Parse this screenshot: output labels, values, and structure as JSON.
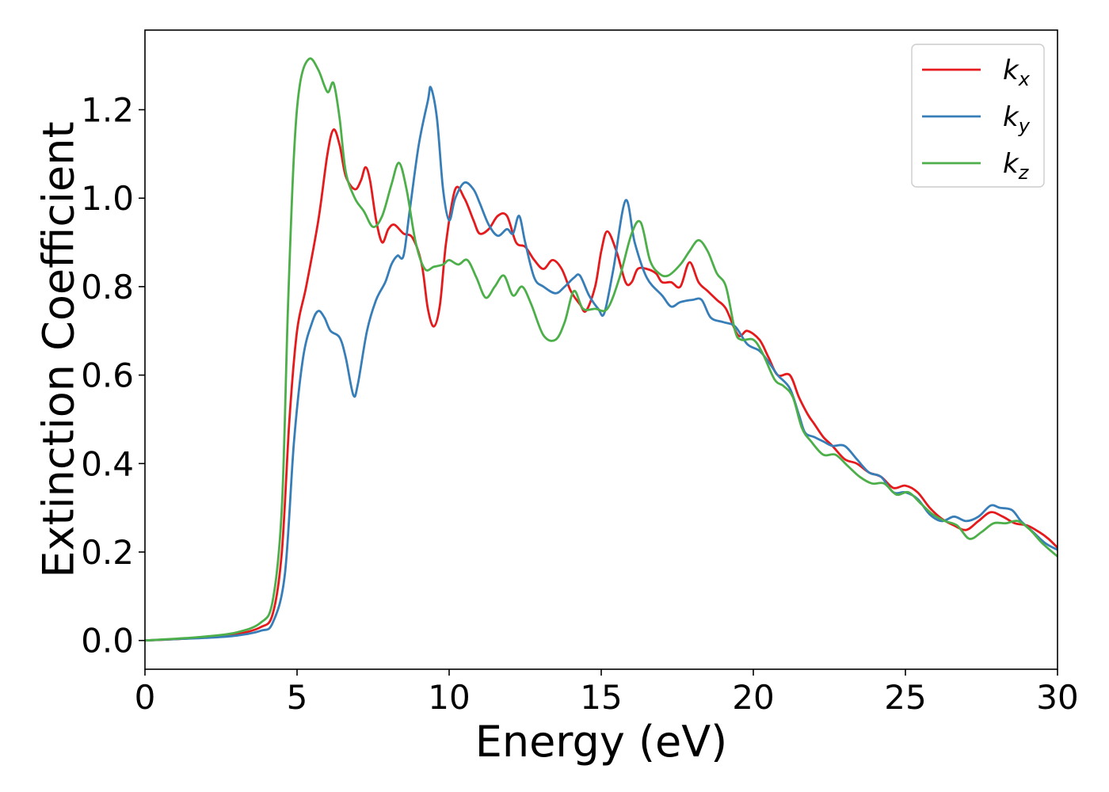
{
  "chart_data": {
    "type": "line",
    "title": "",
    "xlabel": "Energy (eV)",
    "ylabel": "Extinction Coefficient",
    "xlim": [
      0,
      30
    ],
    "ylim": [
      -0.065,
      1.38
    ],
    "xticks": [
      0,
      5,
      10,
      15,
      20,
      25,
      30
    ],
    "yticks": [
      0.0,
      0.2,
      0.4,
      0.6,
      0.8,
      1.0,
      1.2
    ],
    "xtick_labels": [
      "0",
      "5",
      "10",
      "15",
      "20",
      "25",
      "30"
    ],
    "ytick_labels": [
      "0.0",
      "0.2",
      "0.4",
      "0.6",
      "0.8",
      "1.0",
      "1.2"
    ],
    "grid": false,
    "legend_position": "top-right",
    "series": [
      {
        "name": "k_x",
        "name_base": "k",
        "name_sub": "x",
        "color": "#e41a1c",
        "points": [
          [
            0,
            0
          ],
          [
            1,
            0.003
          ],
          [
            2,
            0.007
          ],
          [
            3,
            0.014
          ],
          [
            3.8,
            0.03
          ],
          [
            4.2,
            0.06
          ],
          [
            4.5,
            0.2
          ],
          [
            4.75,
            0.5
          ],
          [
            5,
            0.7
          ],
          [
            5.3,
            0.8
          ],
          [
            5.7,
            0.95
          ],
          [
            6,
            1.1
          ],
          [
            6.2,
            1.155
          ],
          [
            6.4,
            1.12
          ],
          [
            6.6,
            1.05
          ],
          [
            6.9,
            1.02
          ],
          [
            7.1,
            1.04
          ],
          [
            7.25,
            1.07
          ],
          [
            7.4,
            1.04
          ],
          [
            7.6,
            0.95
          ],
          [
            7.8,
            0.9
          ],
          [
            8.0,
            0.93
          ],
          [
            8.2,
            0.94
          ],
          [
            8.5,
            0.92
          ],
          [
            8.8,
            0.91
          ],
          [
            9.1,
            0.85
          ],
          [
            9.3,
            0.75
          ],
          [
            9.5,
            0.71
          ],
          [
            9.7,
            0.76
          ],
          [
            9.9,
            0.9
          ],
          [
            10.2,
            1.02
          ],
          [
            10.5,
            1.0
          ],
          [
            10.8,
            0.95
          ],
          [
            11.0,
            0.92
          ],
          [
            11.3,
            0.93
          ],
          [
            11.6,
            0.96
          ],
          [
            11.9,
            0.96
          ],
          [
            12.2,
            0.9
          ],
          [
            12.5,
            0.89
          ],
          [
            12.8,
            0.86
          ],
          [
            13.1,
            0.84
          ],
          [
            13.4,
            0.86
          ],
          [
            13.7,
            0.84
          ],
          [
            14.0,
            0.79
          ],
          [
            14.3,
            0.76
          ],
          [
            14.5,
            0.745
          ],
          [
            14.8,
            0.8
          ],
          [
            15.0,
            0.88
          ],
          [
            15.2,
            0.925
          ],
          [
            15.5,
            0.88
          ],
          [
            15.8,
            0.81
          ],
          [
            16.0,
            0.81
          ],
          [
            16.2,
            0.84
          ],
          [
            16.5,
            0.84
          ],
          [
            16.8,
            0.83
          ],
          [
            17.0,
            0.81
          ],
          [
            17.3,
            0.81
          ],
          [
            17.6,
            0.8
          ],
          [
            17.9,
            0.855
          ],
          [
            18.2,
            0.81
          ],
          [
            18.5,
            0.79
          ],
          [
            18.8,
            0.77
          ],
          [
            19.1,
            0.75
          ],
          [
            19.5,
            0.69
          ],
          [
            19.8,
            0.7
          ],
          [
            20.2,
            0.68
          ],
          [
            20.5,
            0.64
          ],
          [
            20.8,
            0.6
          ],
          [
            21.2,
            0.6
          ],
          [
            21.5,
            0.55
          ],
          [
            21.8,
            0.51
          ],
          [
            22.0,
            0.49
          ],
          [
            22.3,
            0.46
          ],
          [
            22.6,
            0.44
          ],
          [
            23.0,
            0.41
          ],
          [
            23.4,
            0.4
          ],
          [
            23.8,
            0.38
          ],
          [
            24.2,
            0.37
          ],
          [
            24.6,
            0.345
          ],
          [
            25.0,
            0.35
          ],
          [
            25.4,
            0.335
          ],
          [
            25.8,
            0.3
          ],
          [
            26.2,
            0.275
          ],
          [
            26.6,
            0.26
          ],
          [
            27.0,
            0.25
          ],
          [
            27.4,
            0.27
          ],
          [
            27.8,
            0.29
          ],
          [
            28.2,
            0.28
          ],
          [
            28.6,
            0.265
          ],
          [
            29.0,
            0.26
          ],
          [
            29.4,
            0.245
          ],
          [
            29.7,
            0.23
          ],
          [
            30,
            0.21
          ]
        ]
      },
      {
        "name": "k_y",
        "name_base": "k",
        "name_sub": "y",
        "color": "#377eb8",
        "points": [
          [
            0,
            0
          ],
          [
            1,
            0.003
          ],
          [
            2,
            0.006
          ],
          [
            3,
            0.011
          ],
          [
            3.8,
            0.022
          ],
          [
            4.2,
            0.04
          ],
          [
            4.6,
            0.15
          ],
          [
            4.9,
            0.45
          ],
          [
            5.2,
            0.64
          ],
          [
            5.5,
            0.72
          ],
          [
            5.7,
            0.745
          ],
          [
            5.9,
            0.73
          ],
          [
            6.1,
            0.7
          ],
          [
            6.4,
            0.685
          ],
          [
            6.6,
            0.64
          ],
          [
            6.85,
            0.555
          ],
          [
            7.0,
            0.58
          ],
          [
            7.3,
            0.7
          ],
          [
            7.6,
            0.77
          ],
          [
            7.9,
            0.81
          ],
          [
            8.1,
            0.85
          ],
          [
            8.3,
            0.87
          ],
          [
            8.5,
            0.87
          ],
          [
            8.7,
            0.97
          ],
          [
            9.0,
            1.12
          ],
          [
            9.3,
            1.22
          ],
          [
            9.4,
            1.25
          ],
          [
            9.6,
            1.18
          ],
          [
            9.8,
            1.02
          ],
          [
            10.0,
            0.95
          ],
          [
            10.2,
            1.0
          ],
          [
            10.5,
            1.035
          ],
          [
            10.8,
            1.02
          ],
          [
            11.0,
            0.99
          ],
          [
            11.3,
            0.94
          ],
          [
            11.6,
            0.915
          ],
          [
            11.9,
            0.93
          ],
          [
            12.1,
            0.92
          ],
          [
            12.3,
            0.96
          ],
          [
            12.5,
            0.9
          ],
          [
            12.8,
            0.82
          ],
          [
            13.1,
            0.8
          ],
          [
            13.5,
            0.785
          ],
          [
            13.8,
            0.8
          ],
          [
            14.1,
            0.82
          ],
          [
            14.3,
            0.825
          ],
          [
            14.6,
            0.78
          ],
          [
            14.9,
            0.75
          ],
          [
            15.1,
            0.74
          ],
          [
            15.4,
            0.84
          ],
          [
            15.8,
            0.995
          ],
          [
            16.1,
            0.9
          ],
          [
            16.5,
            0.82
          ],
          [
            17.0,
            0.78
          ],
          [
            17.3,
            0.755
          ],
          [
            17.6,
            0.765
          ],
          [
            18.0,
            0.77
          ],
          [
            18.3,
            0.77
          ],
          [
            18.6,
            0.73
          ],
          [
            19.0,
            0.72
          ],
          [
            19.4,
            0.71
          ],
          [
            19.8,
            0.67
          ],
          [
            20.2,
            0.655
          ],
          [
            20.5,
            0.63
          ],
          [
            20.8,
            0.6
          ],
          [
            21.2,
            0.57
          ],
          [
            21.5,
            0.51
          ],
          [
            21.7,
            0.47
          ],
          [
            22.0,
            0.46
          ],
          [
            22.3,
            0.45
          ],
          [
            22.6,
            0.44
          ],
          [
            23.0,
            0.44
          ],
          [
            23.4,
            0.41
          ],
          [
            23.8,
            0.38
          ],
          [
            24.2,
            0.37
          ],
          [
            24.6,
            0.335
          ],
          [
            25.0,
            0.335
          ],
          [
            25.4,
            0.32
          ],
          [
            25.8,
            0.285
          ],
          [
            26.2,
            0.27
          ],
          [
            26.6,
            0.28
          ],
          [
            27.0,
            0.27
          ],
          [
            27.4,
            0.28
          ],
          [
            27.8,
            0.305
          ],
          [
            28.1,
            0.3
          ],
          [
            28.5,
            0.295
          ],
          [
            28.8,
            0.27
          ],
          [
            29.2,
            0.245
          ],
          [
            29.6,
            0.22
          ],
          [
            30,
            0.205
          ]
        ]
      },
      {
        "name": "k_z",
        "name_base": "k",
        "name_sub": "z",
        "color": "#4daf4a",
        "points": [
          [
            0,
            0
          ],
          [
            1,
            0.004
          ],
          [
            2,
            0.009
          ],
          [
            3,
            0.018
          ],
          [
            3.8,
            0.04
          ],
          [
            4.2,
            0.09
          ],
          [
            4.5,
            0.3
          ],
          [
            4.7,
            0.75
          ],
          [
            4.9,
            1.1
          ],
          [
            5.1,
            1.26
          ],
          [
            5.4,
            1.315
          ],
          [
            5.7,
            1.29
          ],
          [
            6.0,
            1.24
          ],
          [
            6.2,
            1.26
          ],
          [
            6.4,
            1.18
          ],
          [
            6.6,
            1.06
          ],
          [
            6.9,
            1.0
          ],
          [
            7.2,
            0.97
          ],
          [
            7.5,
            0.935
          ],
          [
            7.8,
            0.96
          ],
          [
            8.1,
            1.03
          ],
          [
            8.35,
            1.08
          ],
          [
            8.6,
            1.02
          ],
          [
            8.9,
            0.9
          ],
          [
            9.2,
            0.84
          ],
          [
            9.5,
            0.845
          ],
          [
            9.8,
            0.85
          ],
          [
            10.0,
            0.86
          ],
          [
            10.3,
            0.85
          ],
          [
            10.6,
            0.86
          ],
          [
            10.9,
            0.82
          ],
          [
            11.2,
            0.775
          ],
          [
            11.5,
            0.8
          ],
          [
            11.8,
            0.825
          ],
          [
            12.1,
            0.78
          ],
          [
            12.4,
            0.8
          ],
          [
            12.7,
            0.76
          ],
          [
            13.1,
            0.69
          ],
          [
            13.5,
            0.68
          ],
          [
            13.8,
            0.72
          ],
          [
            14.1,
            0.79
          ],
          [
            14.4,
            0.75
          ],
          [
            14.8,
            0.75
          ],
          [
            15.2,
            0.75
          ],
          [
            15.6,
            0.82
          ],
          [
            16.0,
            0.92
          ],
          [
            16.3,
            0.945
          ],
          [
            16.6,
            0.86
          ],
          [
            16.9,
            0.83
          ],
          [
            17.2,
            0.825
          ],
          [
            17.6,
            0.85
          ],
          [
            17.9,
            0.88
          ],
          [
            18.2,
            0.905
          ],
          [
            18.5,
            0.88
          ],
          [
            18.8,
            0.83
          ],
          [
            19.1,
            0.8
          ],
          [
            19.4,
            0.7
          ],
          [
            19.6,
            0.68
          ],
          [
            20.0,
            0.68
          ],
          [
            20.3,
            0.65
          ],
          [
            20.7,
            0.59
          ],
          [
            21.0,
            0.575
          ],
          [
            21.3,
            0.55
          ],
          [
            21.6,
            0.48
          ],
          [
            21.9,
            0.45
          ],
          [
            22.3,
            0.42
          ],
          [
            22.7,
            0.42
          ],
          [
            23.1,
            0.395
          ],
          [
            23.5,
            0.37
          ],
          [
            23.9,
            0.355
          ],
          [
            24.3,
            0.355
          ],
          [
            24.7,
            0.33
          ],
          [
            25.1,
            0.335
          ],
          [
            25.5,
            0.31
          ],
          [
            25.9,
            0.285
          ],
          [
            26.3,
            0.27
          ],
          [
            26.7,
            0.26
          ],
          [
            27.1,
            0.23
          ],
          [
            27.5,
            0.245
          ],
          [
            27.9,
            0.265
          ],
          [
            28.3,
            0.265
          ],
          [
            28.7,
            0.27
          ],
          [
            29.1,
            0.25
          ],
          [
            29.5,
            0.22
          ],
          [
            30,
            0.19
          ]
        ]
      }
    ]
  }
}
